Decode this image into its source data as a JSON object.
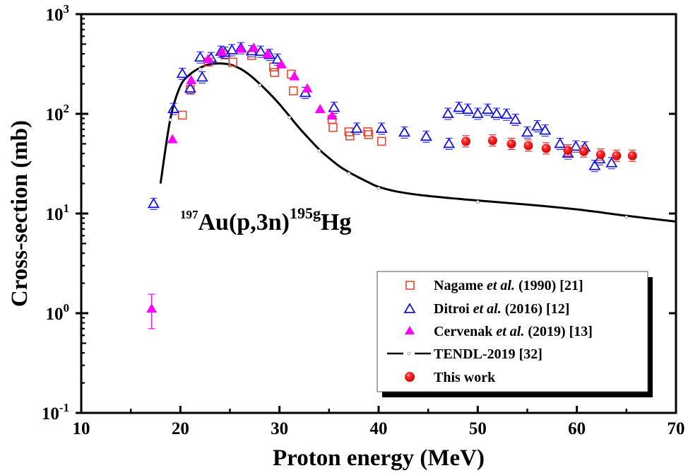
{
  "chart_data": {
    "type": "scatter",
    "title": "",
    "xlabel": "Proton energy (MeV)",
    "ylabel": "Cross-section (mb)",
    "xlim": [
      10,
      70
    ],
    "ylim": [
      0.1,
      1000
    ],
    "yscale": "log",
    "x_ticks": [
      10,
      20,
      30,
      40,
      50,
      60,
      70
    ],
    "x_tick_labels": [
      "10",
      "20",
      "30",
      "40",
      "50",
      "60",
      "70"
    ],
    "y_ticks": [
      0.1,
      1,
      10,
      100,
      1000
    ],
    "y_tick_labels": [
      {
        "base": "10",
        "exp": "-1"
      },
      {
        "base": "10",
        "exp": "0"
      },
      {
        "base": "10",
        "exp": "1"
      },
      {
        "base": "10",
        "exp": "2"
      },
      {
        "base": "10",
        "exp": "3"
      }
    ],
    "grid": false,
    "legend_position": "bottom-right",
    "annotation": {
      "pre_sup": "197",
      "main": "Au(p,3n)",
      "mid_sup": "195g",
      "tail": "Hg"
    },
    "series": [
      {
        "name": "Nagame et al. (1990) [21]",
        "legend_parts": [
          "Nagame ",
          "et al.",
          " (1990) [21]"
        ],
        "marker": "open-square",
        "color": "#e8482c",
        "x": [
          20.2,
          21.0,
          22.8,
          24.5,
          25.3,
          27.2,
          29.4,
          29.5,
          31.2,
          31.4,
          35.3,
          35.4,
          37.0,
          37.1,
          38.9,
          39.0,
          40.3
        ],
        "y": [
          97,
          175,
          330,
          390,
          330,
          385,
          295,
          260,
          250,
          170,
          88,
          73,
          66,
          60,
          66,
          62,
          53
        ]
      },
      {
        "name": "Ditroi et al. (2016) [12]",
        "legend_parts": [
          "Ditroi ",
          "et al.",
          " (2016) [12]"
        ],
        "marker": "open-triangle",
        "color": "#1515e6",
        "x": [
          17.3,
          19.3,
          20.2,
          21.0,
          22.0,
          22.2,
          23.1,
          24.1,
          24.5,
          25.2,
          26.1,
          27.2,
          28.1,
          29.0,
          29.8,
          32.6,
          35.5,
          37.8,
          40.3,
          42.6,
          44.8,
          47.0,
          47.1,
          48.1,
          49.0,
          50.0,
          51.0,
          51.9,
          52.9,
          53.8,
          55.0,
          56.0,
          56.8,
          58.3,
          59.1,
          59.9,
          60.8,
          61.8,
          62.3,
          63.5
        ],
        "y": [
          12.5,
          112,
          252,
          180,
          368,
          232,
          362,
          420,
          410,
          435,
          455,
          425,
          420,
          390,
          350,
          162,
          115,
          71,
          71,
          65,
          59,
          100,
          50,
          115,
          110,
          100,
          110,
          100,
          98,
          87,
          65,
          75,
          68,
          50,
          40,
          47,
          46,
          30,
          35,
          32
        ]
      },
      {
        "name": "Cervenak et al. (2019) [13]",
        "legend_parts": [
          "Cervenak ",
          "et al.",
          " (2019) [13]"
        ],
        "marker": "filled-triangle",
        "color": "#ff00ff",
        "x": [
          17.1,
          19.2,
          21.1,
          22.8,
          24.2,
          26.1,
          27.4,
          28.8,
          30.2,
          31.5,
          32.8,
          34.1,
          35.3
        ],
        "y": [
          1.1,
          55,
          215,
          350,
          415,
          445,
          455,
          395,
          310,
          235,
          178,
          110,
          95
        ],
        "error_bars": [
          {
            "x": 17.1,
            "lo": 0.7,
            "hi": 1.55
          }
        ]
      },
      {
        "name": "TENDL-2019 [32]",
        "legend_parts": [
          "TENDL-2019 [32]"
        ],
        "marker": "line-with-small-circles",
        "color": "#000000",
        "x": [
          18.0,
          19.0,
          20.0,
          21.0,
          22.0,
          23.0,
          24.0,
          25.0,
          26.0,
          27.0,
          28.0,
          29.0,
          30.0,
          31.0,
          32.0,
          33.0,
          34.0,
          35.0,
          36.0,
          37.0,
          38.0,
          39.0,
          40.0,
          42.0,
          45.0,
          50.0,
          55.0,
          60.0,
          65.0,
          70.0
        ],
        "y": [
          20,
          90,
          190,
          250,
          290,
          315,
          320,
          312,
          285,
          245,
          200,
          160,
          125,
          95,
          72,
          56,
          44,
          36,
          30,
          26,
          23,
          20.5,
          18.5,
          16.5,
          15,
          13.5,
          12.3,
          11,
          9.5,
          8.3
        ]
      },
      {
        "name": "This work",
        "legend_parts": [
          "This work"
        ],
        "marker": "filled-sphere",
        "color": "#ee0000",
        "x": [
          48.8,
          51.5,
          53.4,
          55.1,
          56.9,
          59.1,
          60.7,
          62.4,
          64.0,
          65.6
        ],
        "y": [
          53,
          54,
          50,
          48,
          45,
          43,
          42,
          39,
          38,
          38
        ]
      }
    ]
  }
}
